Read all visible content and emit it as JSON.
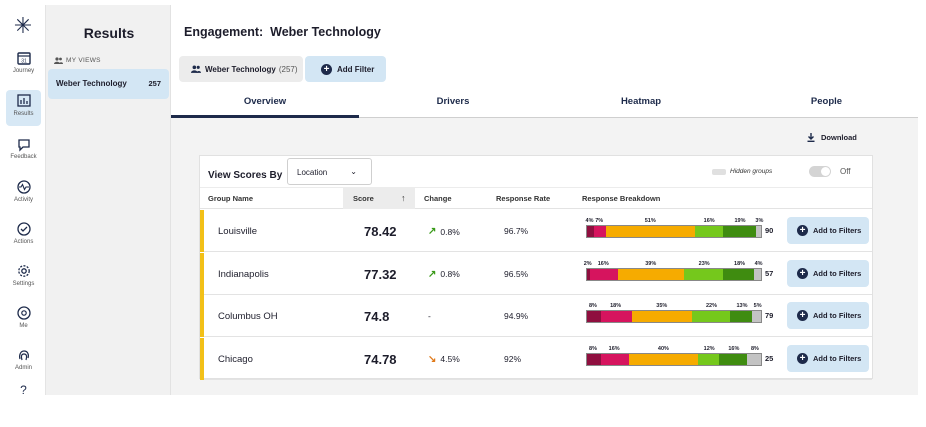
{
  "nav": {
    "items": [
      {
        "label": "Journey",
        "icon": "calendar-icon"
      },
      {
        "label": "Results",
        "icon": "chart-icon"
      },
      {
        "label": "Feedback",
        "icon": "chat-icon"
      },
      {
        "label": "Activity",
        "icon": "pulse-icon"
      },
      {
        "label": "Actions",
        "icon": "check-circle-icon"
      },
      {
        "label": "Settings",
        "icon": "gear-icon"
      },
      {
        "label": "Me",
        "icon": "at-icon"
      },
      {
        "label": "Admin",
        "icon": "fingerprint-icon"
      }
    ],
    "help_glyph": "?"
  },
  "results_panel": {
    "title": "Results",
    "section_label": "MY VIEWS",
    "views": [
      {
        "name": "Weber Technology",
        "count": "257"
      }
    ]
  },
  "header": {
    "title_prefix": "Engagement:",
    "title_name": "Weber Technology",
    "group_chip": {
      "name": "Weber Technology",
      "count": "(257)"
    },
    "add_filter_label": "Add Filter"
  },
  "tabs": [
    {
      "label": "Overview",
      "active": true
    },
    {
      "label": "Drivers",
      "active": false
    },
    {
      "label": "Heatmap",
      "active": false
    },
    {
      "label": "People",
      "active": false
    }
  ],
  "download_label": "Download",
  "card": {
    "view_scores_by": "View Scores By",
    "select_value": "Location",
    "hidden_groups_label": "Hidden groups",
    "toggle_state": "Off",
    "columns": {
      "group_name": "Group Name",
      "score": "Score",
      "change": "Change",
      "response_rate": "Response Rate",
      "response_breakdown": "Response Breakdown"
    },
    "add_to_filters_label": "Add to Filters",
    "breakdown_colors": [
      "#8f0f3f",
      "#d6145e",
      "#f6ab00",
      "#75c81c",
      "#3f8c10",
      "#c3c3c3"
    ],
    "rows": [
      {
        "name": "Louisville",
        "score": "78.42",
        "change": "0.8%",
        "change_dir": "up",
        "response_rate": "96.7%",
        "breakdown": [
          4,
          7,
          51,
          16,
          19,
          3
        ],
        "labels": [
          "4%",
          "7%",
          "51%",
          "16%",
          "19%",
          "3%"
        ],
        "n": "90"
      },
      {
        "name": "Indianapolis",
        "score": "77.32",
        "change": "0.8%",
        "change_dir": "up",
        "response_rate": "96.5%",
        "breakdown": [
          2,
          16,
          39,
          23,
          18,
          4
        ],
        "labels": [
          "2%",
          "16%",
          "39%",
          "23%",
          "18%",
          "4%"
        ],
        "n": "57"
      },
      {
        "name": "Columbus OH",
        "score": "74.8",
        "change": "-",
        "change_dir": "none",
        "response_rate": "94.9%",
        "breakdown": [
          8,
          18,
          35,
          22,
          13,
          5
        ],
        "labels": [
          "8%",
          "18%",
          "35%",
          "22%",
          "13%",
          "5%"
        ],
        "n": "79"
      },
      {
        "name": "Chicago",
        "score": "74.78",
        "change": "4.5%",
        "change_dir": "down",
        "response_rate": "92%",
        "breakdown": [
          8,
          16,
          40,
          12,
          16,
          8
        ],
        "labels": [
          "8%",
          "16%",
          "40%",
          "12%",
          "16%",
          "8%"
        ],
        "n": "25"
      }
    ]
  }
}
